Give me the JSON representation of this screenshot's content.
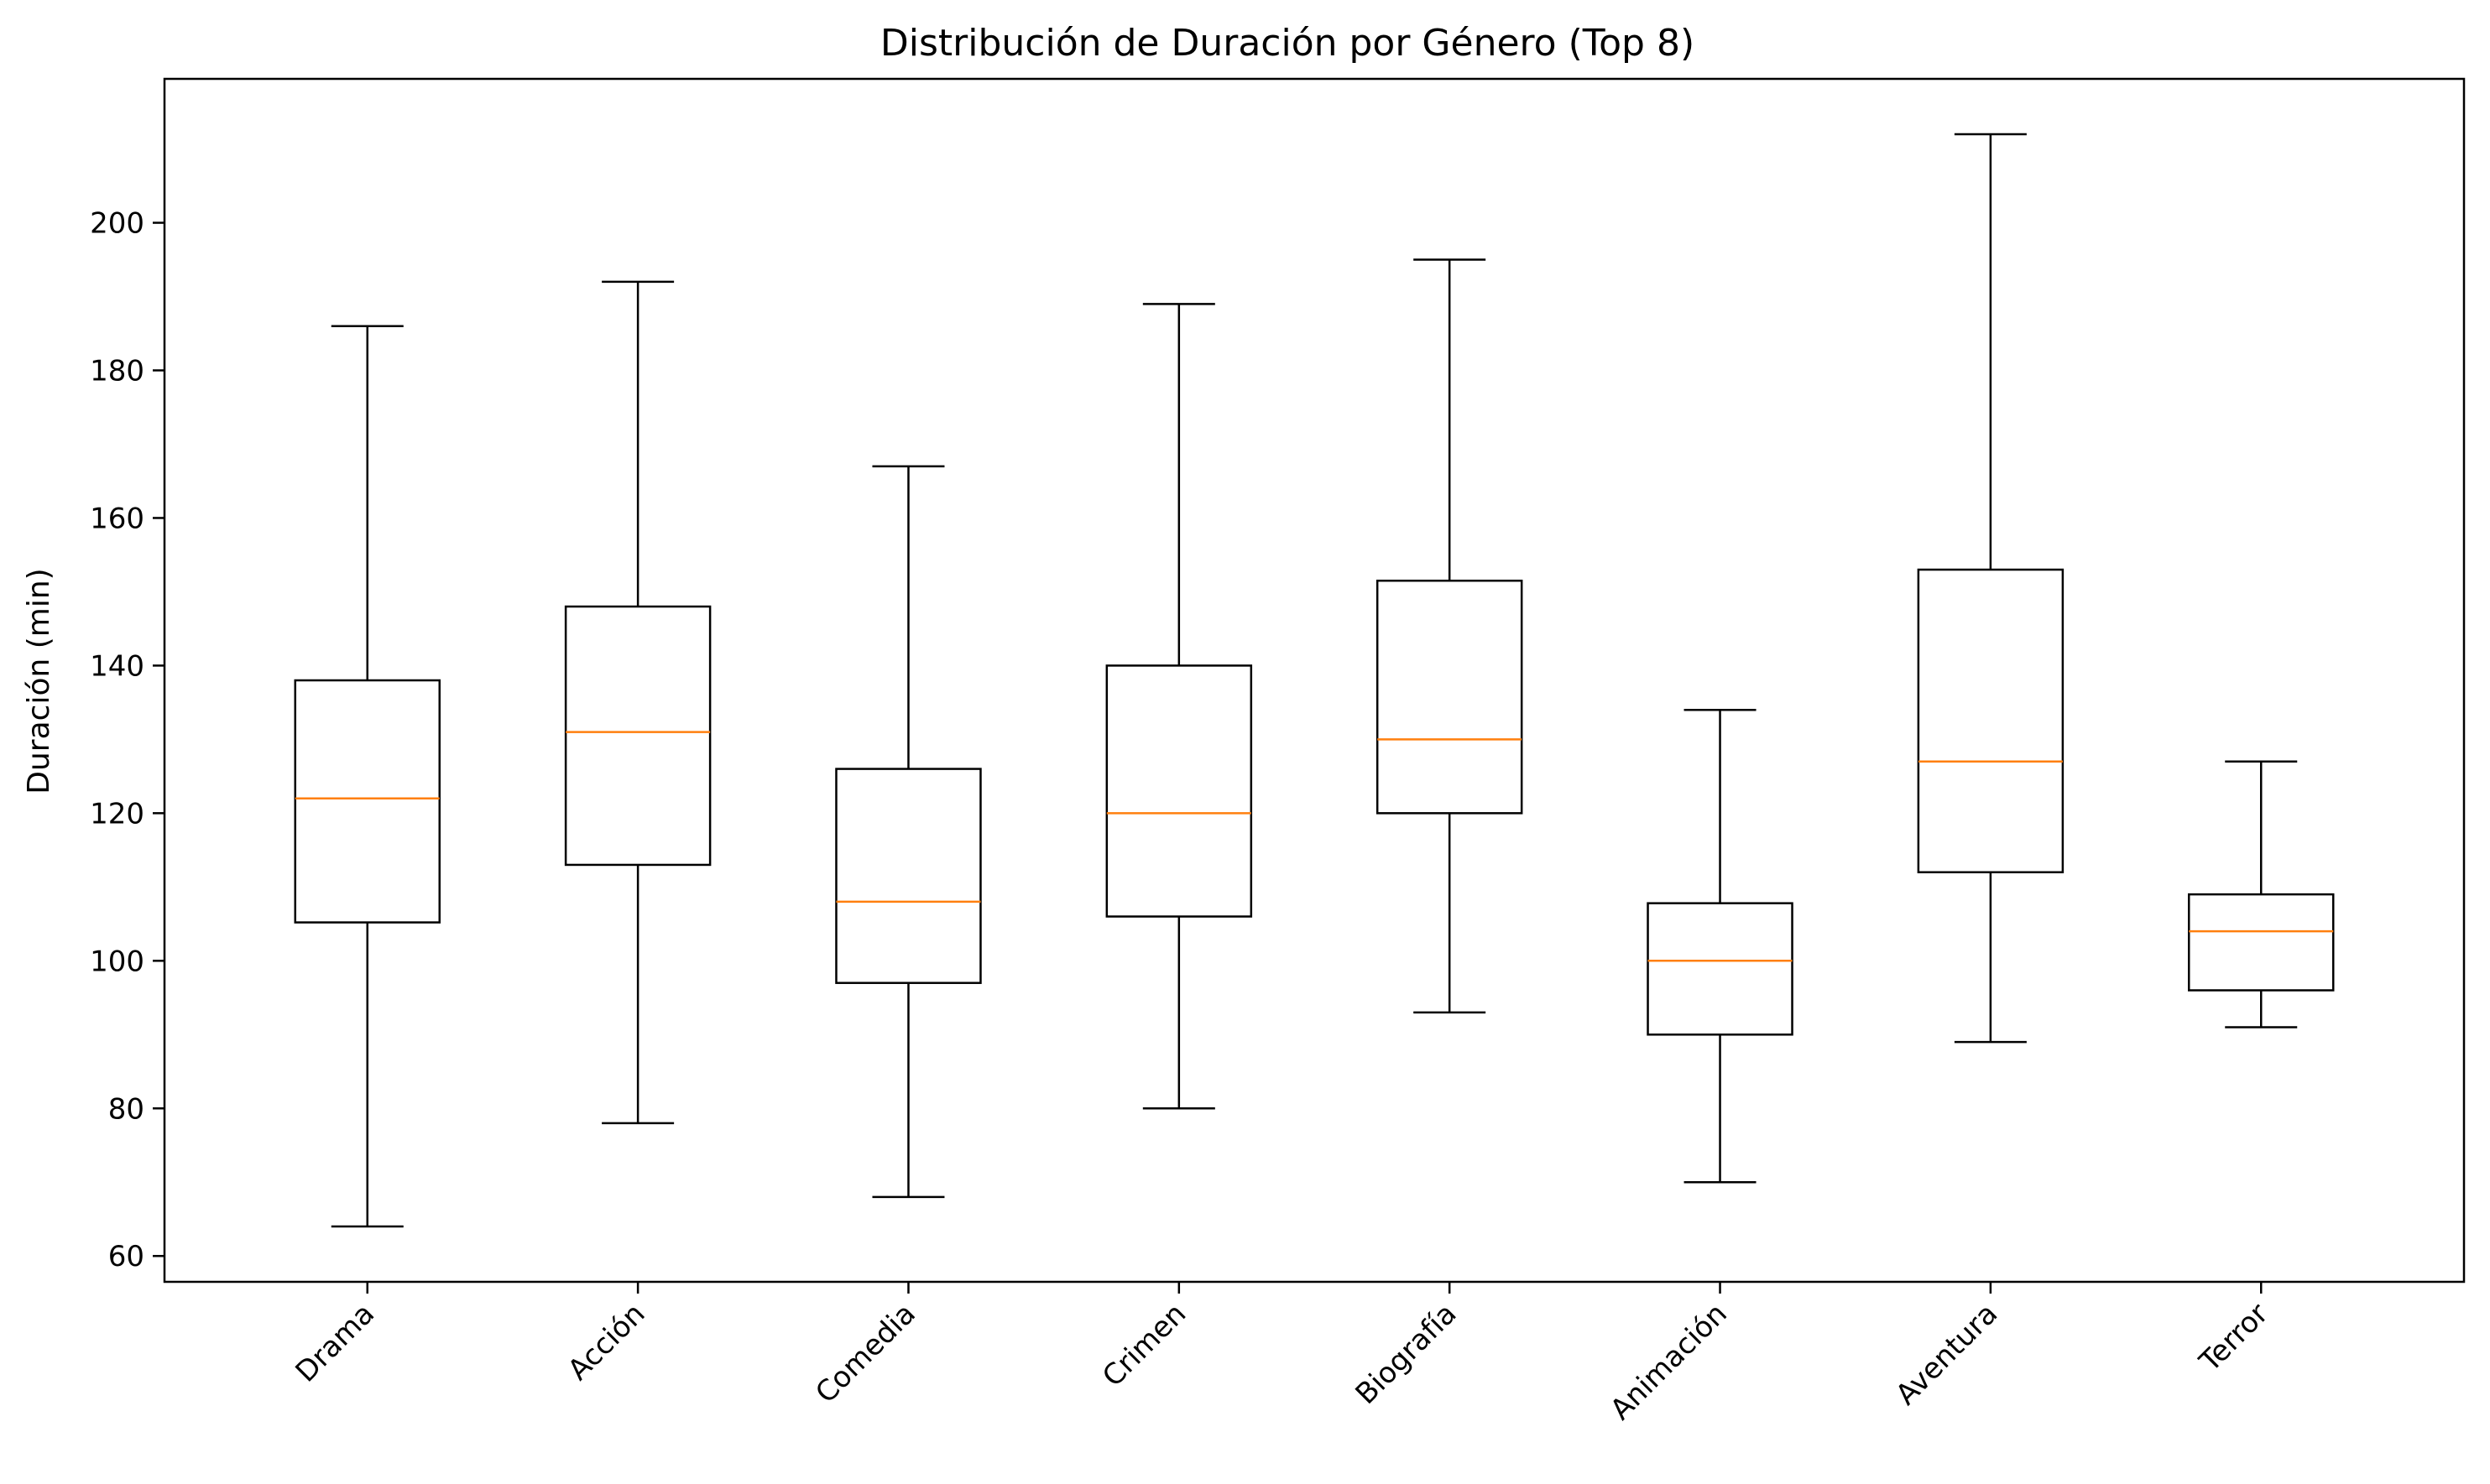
{
  "chart_data": {
    "type": "boxplot",
    "title": "Distribución de Duración por Género (Top 8)",
    "xlabel": "",
    "ylabel": "Duración (min)",
    "ylim": [
      56.5,
      219.5
    ],
    "yticks": [
      60,
      80,
      100,
      120,
      140,
      160,
      180,
      200
    ],
    "grid": false,
    "categories": [
      "Drama",
      "Acción",
      "Comedia",
      "Crimen",
      "Biografía",
      "Animación",
      "Aventura",
      "Terror"
    ],
    "boxes": [
      {
        "category": "Drama",
        "whisker_low": 64,
        "q1": 105.2,
        "median": 122,
        "q3": 138,
        "whisker_high": 186
      },
      {
        "category": "Acción",
        "whisker_low": 78,
        "q1": 113,
        "median": 131,
        "q3": 148,
        "whisker_high": 192
      },
      {
        "category": "Comedia",
        "whisker_low": 68,
        "q1": 97,
        "median": 108,
        "q3": 126,
        "whisker_high": 167
      },
      {
        "category": "Crimen",
        "whisker_low": 80,
        "q1": 106,
        "median": 120,
        "q3": 140,
        "whisker_high": 189
      },
      {
        "category": "Biografía",
        "whisker_low": 93,
        "q1": 120,
        "median": 130,
        "q3": 151.5,
        "whisker_high": 195
      },
      {
        "category": "Animación",
        "whisker_low": 70,
        "q1": 90,
        "median": 100,
        "q3": 107.8,
        "whisker_high": 134
      },
      {
        "category": "Aventura",
        "whisker_low": 89,
        "q1": 112,
        "median": 127,
        "q3": 153,
        "whisker_high": 212
      },
      {
        "category": "Terror",
        "whisker_low": 91,
        "q1": 96,
        "median": 104,
        "q3": 109,
        "whisker_high": 127
      }
    ],
    "colors": {
      "box": "#000000",
      "median": "#ff7f0e"
    }
  }
}
